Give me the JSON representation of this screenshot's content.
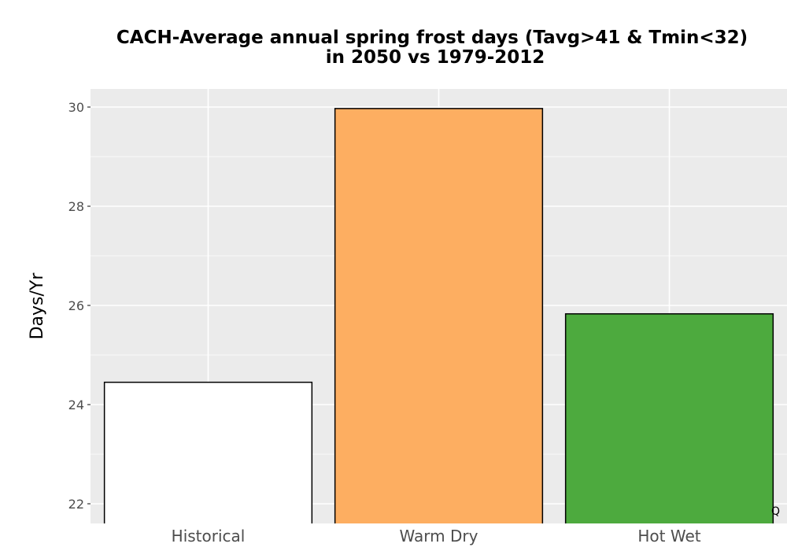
{
  "chart_data": {
    "type": "bar",
    "title_line1": "CACH-Average annual spring frost days (Tavg>41 & Tmin<32)",
    "title_line2": "in 2050 vs 1979-2012",
    "xlabel": "",
    "ylabel": "Days/Yr",
    "categories": [
      "Historical",
      "Warm Dry",
      "Hot Wet"
    ],
    "values": [
      24.45,
      29.97,
      25.83
    ],
    "colors": [
      "#ffffff",
      "#fdae61",
      "#4daa3e"
    ],
    "ylim": [
      21.6,
      30.35
    ],
    "yticks": [
      22,
      24,
      26,
      28,
      30
    ],
    "ytick_labels": [
      "22",
      "24",
      "26",
      "28",
      "30"
    ],
    "grid": true,
    "panel_background": "#ebebeb",
    "corner_mark": "Q"
  }
}
